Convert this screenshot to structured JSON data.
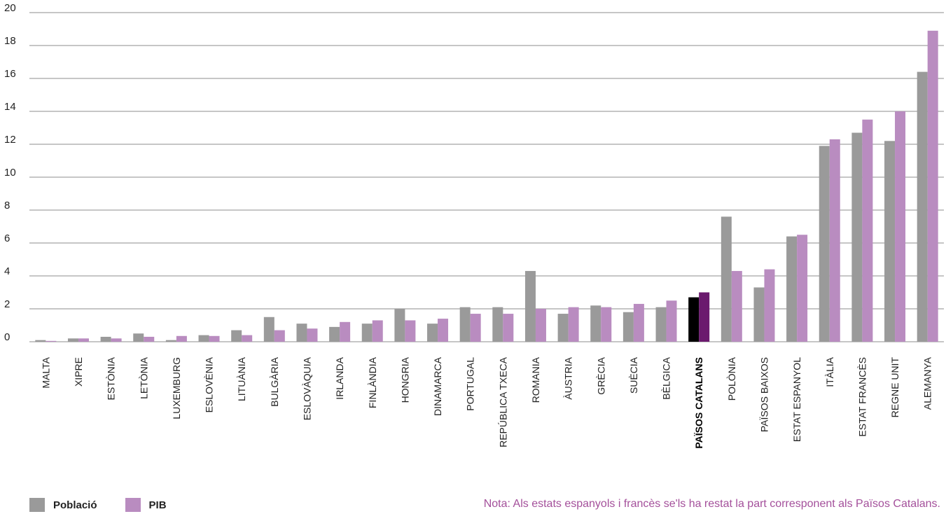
{
  "chart_data": {
    "type": "bar",
    "categories": [
      "MALTA",
      "XIPRE",
      "ESTÒNIA",
      "LETÒNIA",
      "LUXEMBURG",
      "ESLOVÈNIA",
      "LITUÀNIA",
      "BULGÀRIA",
      "ESLOVÀQUIA",
      "IRLANDA",
      "FINLÀNDIA",
      "HONGRIA",
      "DINAMARCA",
      "PORTUGAL",
      "REPÚBLICA TXECA",
      "ROMANIA",
      "ÀUSTRIA",
      "GRÈCIA",
      "SUÈCIA",
      "BÈLGICA",
      "PAÏSOS CATALANS",
      "POLÒNIA",
      "PAÏSOS BAIXOS",
      "ESTAT ESPANYOL",
      "ITÀLIA",
      "ESTAT FRANCÈS",
      "REGNE UNIT",
      "ALEMANYA"
    ],
    "highlight_category": "PAÏSOS CATALANS",
    "series": [
      {
        "name": "Població",
        "color": "#9a9a9a",
        "values": [
          0.1,
          0.2,
          0.3,
          0.5,
          0.1,
          0.4,
          0.7,
          1.5,
          1.1,
          0.9,
          1.1,
          2.0,
          1.1,
          2.1,
          2.1,
          4.3,
          1.7,
          2.2,
          1.8,
          2.1,
          2.7,
          7.6,
          3.3,
          6.4,
          11.9,
          12.7,
          12.2,
          16.4
        ]
      },
      {
        "name": "PIB",
        "color": "#b98cc0",
        "values": [
          0.05,
          0.2,
          0.2,
          0.3,
          0.35,
          0.35,
          0.4,
          0.7,
          0.8,
          1.2,
          1.3,
          1.3,
          1.4,
          1.7,
          1.7,
          2.0,
          2.1,
          2.1,
          2.3,
          2.5,
          3.0,
          4.3,
          4.4,
          6.5,
          12.3,
          13.5,
          14.0,
          18.9
        ]
      }
    ],
    "highlight_colors": {
      "Població": "#000000",
      "PIB": "#6b1a6e"
    },
    "ylim": [
      0,
      20
    ],
    "yticks": [
      0,
      2,
      4,
      6,
      8,
      10,
      12,
      14,
      16,
      18,
      20
    ],
    "grid": true,
    "legend_position": "bottom-left"
  },
  "note": "Nota: Als estats espanyols i francès se'ls ha restat la part corresponent als Països Catalans."
}
